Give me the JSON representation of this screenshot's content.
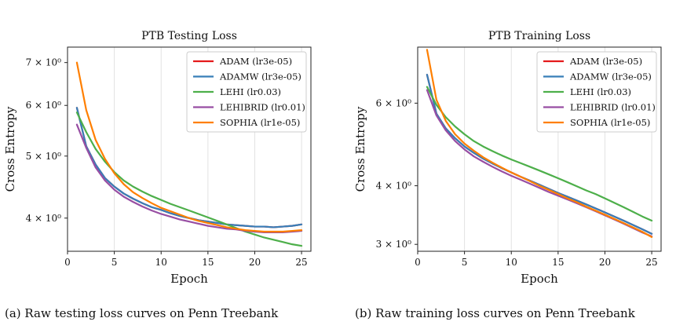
{
  "captions": {
    "a": "(a) Raw testing loss curves on Penn Treebank",
    "b": "(b) Raw training loss curves on Penn Treebank"
  },
  "chart_data": [
    {
      "type": "line",
      "title": "PTB Testing Loss",
      "xlabel": "Epoch",
      "ylabel": "Cross Entropy",
      "yscale": "log",
      "xlim": [
        0,
        26
      ],
      "ylim": [
        3.55,
        7.4
      ],
      "xticks": [
        0,
        5,
        10,
        15,
        20,
        25
      ],
      "yticks": [
        {
          "value": 4,
          "label": "4 × 10⁰"
        },
        {
          "value": 5,
          "label": "5 × 10⁰"
        },
        {
          "value": 6,
          "label": "6 × 10⁰"
        },
        {
          "value": 7,
          "label": "7 × 10⁰"
        }
      ],
      "grid": "vertical",
      "legend_position": "top-right",
      "x": [
        1,
        2,
        3,
        4,
        5,
        6,
        7,
        8,
        9,
        10,
        11,
        12,
        13,
        14,
        15,
        16,
        17,
        18,
        19,
        20,
        21,
        22,
        23,
        24,
        25
      ],
      "series": [
        {
          "name": "ADAM (lr3e-05)",
          "color": "#e41a1c",
          "values": [
            5.95,
            5.18,
            4.85,
            4.62,
            4.48,
            4.37,
            4.29,
            4.22,
            4.16,
            4.12,
            4.07,
            4.03,
            4.0,
            3.97,
            3.95,
            3.93,
            3.91,
            3.9,
            3.89,
            3.88,
            3.88,
            3.87,
            3.88,
            3.89,
            3.91
          ]
        },
        {
          "name": "ADAMW (lr3e-05)",
          "color": "#377eb8",
          "values": [
            5.95,
            5.18,
            4.85,
            4.62,
            4.48,
            4.37,
            4.29,
            4.22,
            4.16,
            4.12,
            4.07,
            4.03,
            4.0,
            3.97,
            3.95,
            3.93,
            3.91,
            3.9,
            3.89,
            3.88,
            3.88,
            3.87,
            3.88,
            3.89,
            3.91
          ]
        },
        {
          "name": "LEHI (lr0.03)",
          "color": "#4daf4a",
          "values": [
            5.85,
            5.45,
            5.13,
            4.9,
            4.72,
            4.58,
            4.48,
            4.4,
            4.33,
            4.27,
            4.21,
            4.16,
            4.11,
            4.06,
            4.01,
            3.96,
            3.91,
            3.86,
            3.81,
            3.77,
            3.73,
            3.7,
            3.67,
            3.64,
            3.62
          ]
        },
        {
          "name": "LEHIBRID (lr0.01)",
          "color": "#984ea3",
          "values": [
            5.6,
            5.15,
            4.8,
            4.58,
            4.43,
            4.32,
            4.24,
            4.17,
            4.11,
            4.06,
            4.02,
            3.98,
            3.95,
            3.92,
            3.89,
            3.87,
            3.85,
            3.84,
            3.82,
            3.81,
            3.8,
            3.8,
            3.8,
            3.81,
            3.82
          ]
        },
        {
          "name": "SOPHIA (lr1e-05)",
          "color": "#ff7f00",
          "values": [
            7.0,
            5.9,
            5.3,
            4.95,
            4.7,
            4.52,
            4.39,
            4.3,
            4.22,
            4.15,
            4.1,
            4.05,
            4.0,
            3.96,
            3.93,
            3.9,
            3.87,
            3.85,
            3.83,
            3.82,
            3.81,
            3.81,
            3.81,
            3.82,
            3.83
          ]
        }
      ]
    },
    {
      "type": "line",
      "title": "PTB Training Loss",
      "xlabel": "Epoch",
      "ylabel": "Cross Entropy",
      "yscale": "log",
      "xlim": [
        0,
        26
      ],
      "ylim": [
        2.9,
        7.9
      ],
      "xticks": [
        0,
        5,
        10,
        15,
        20,
        25
      ],
      "yticks": [
        {
          "value": 3,
          "label": "3 × 10⁰"
        },
        {
          "value": 4,
          "label": "4 × 10⁰"
        },
        {
          "value": 6,
          "label": "6 × 10⁰"
        }
      ],
      "grid": "vertical",
      "legend_position": "top-right",
      "x": [
        1,
        2,
        3,
        4,
        5,
        6,
        7,
        8,
        9,
        10,
        11,
        12,
        13,
        14,
        15,
        16,
        17,
        18,
        19,
        20,
        21,
        22,
        23,
        24,
        25
      ],
      "series": [
        {
          "name": "ADAM (lr3e-05)",
          "color": "#e41a1c",
          "values": [
            6.9,
            5.7,
            5.3,
            5.05,
            4.85,
            4.7,
            4.57,
            4.46,
            4.36,
            4.27,
            4.18,
            4.1,
            4.02,
            3.94,
            3.86,
            3.79,
            3.72,
            3.65,
            3.58,
            3.51,
            3.44,
            3.37,
            3.3,
            3.23,
            3.16
          ]
        },
        {
          "name": "ADAMW (lr3e-05)",
          "color": "#377eb8",
          "values": [
            6.9,
            5.7,
            5.3,
            5.05,
            4.85,
            4.7,
            4.57,
            4.46,
            4.36,
            4.27,
            4.18,
            4.1,
            4.02,
            3.94,
            3.86,
            3.79,
            3.72,
            3.65,
            3.58,
            3.51,
            3.44,
            3.37,
            3.3,
            3.23,
            3.16
          ]
        },
        {
          "name": "LEHI (lr0.03)",
          "color": "#4daf4a",
          "values": [
            6.5,
            5.95,
            5.6,
            5.35,
            5.15,
            4.98,
            4.85,
            4.74,
            4.64,
            4.55,
            4.47,
            4.39,
            4.31,
            4.23,
            4.15,
            4.07,
            3.99,
            3.91,
            3.84,
            3.76,
            3.68,
            3.6,
            3.52,
            3.44,
            3.37
          ]
        },
        {
          "name": "LEHIBRID (lr0.01)",
          "color": "#984ea3",
          "values": [
            6.4,
            5.65,
            5.25,
            4.98,
            4.78,
            4.62,
            4.5,
            4.39,
            4.29,
            4.2,
            4.12,
            4.04,
            3.96,
            3.88,
            3.81,
            3.74,
            3.67,
            3.6,
            3.53,
            3.46,
            3.39,
            3.32,
            3.25,
            3.18,
            3.12
          ]
        },
        {
          "name": "SOPHIA (lr1e-05)",
          "color": "#ff7f00",
          "values": [
            7.8,
            6.1,
            5.5,
            5.15,
            4.92,
            4.75,
            4.6,
            4.48,
            4.37,
            4.27,
            4.18,
            4.09,
            4.0,
            3.92,
            3.84,
            3.76,
            3.69,
            3.61,
            3.54,
            3.47,
            3.4,
            3.33,
            3.26,
            3.19,
            3.11
          ]
        }
      ]
    }
  ]
}
